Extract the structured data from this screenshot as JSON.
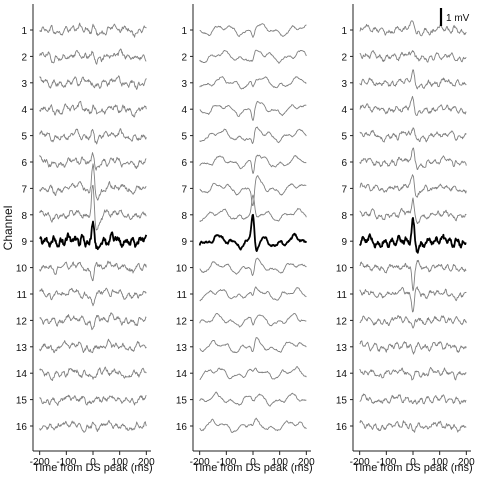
{
  "chart_data": {
    "type": "line",
    "ylabel": "Channel",
    "xlabel": "Time from DS peak (ms)",
    "xlim": [
      -210,
      210
    ],
    "xticks": [
      "-200",
      "-100",
      "0",
      "100",
      "200"
    ],
    "channels": [
      "1",
      "2",
      "3",
      "4",
      "5",
      "6",
      "7",
      "8",
      "9",
      "10",
      "11",
      "12",
      "13",
      "14",
      "15",
      "16"
    ],
    "highlight_channel": "9",
    "scale_bar": "1 mV",
    "trace_color": "#808080",
    "highlight_color": "#000000",
    "panels": [
      {
        "channel_labels": [
          "1",
          "2",
          "3",
          "4",
          "5",
          "6",
          "7",
          "8",
          "9",
          "10",
          "11",
          "12",
          "13",
          "14",
          "15",
          "16"
        ],
        "peak_mV": [
          0.3,
          0.25,
          0.25,
          0.3,
          0.35,
          0.9,
          1.6,
          2.0,
          1.5,
          -0.9,
          -0.6,
          -0.3,
          -0.25,
          -0.15,
          0.15,
          0.2
        ],
        "noise_mV": 0.22,
        "slow_wave_mV": 0.12
      },
      {
        "channel_labels": [
          "1",
          "2",
          "3",
          "4",
          "5",
          "6",
          "7",
          "8",
          "9",
          "10",
          "11",
          "12",
          "13",
          "14",
          "15",
          "16"
        ],
        "peak_mV": [
          -0.3,
          -0.35,
          -0.45,
          -0.55,
          -0.7,
          -0.9,
          -1.1,
          0.9,
          1.6,
          -0.5,
          -0.45,
          -0.4,
          -0.45,
          -0.25,
          -0.2,
          -0.15
        ],
        "noise_mV": 0.08,
        "slow_wave_mV": 0.2
      },
      {
        "channel_labels": [
          "1",
          "2",
          "3",
          "4",
          "5",
          "6",
          "7",
          "8",
          "9",
          "10",
          "11",
          "12",
          "13",
          "14",
          "15",
          "16"
        ],
        "peak_mV": [
          0.45,
          0.55,
          0.6,
          0.6,
          0.6,
          0.7,
          0.9,
          1.2,
          1.3,
          -1.3,
          -1.0,
          -0.6,
          -0.4,
          -0.25,
          -0.2,
          -0.15
        ],
        "noise_mV": 0.2,
        "slow_wave_mV": 0.1
      }
    ]
  }
}
